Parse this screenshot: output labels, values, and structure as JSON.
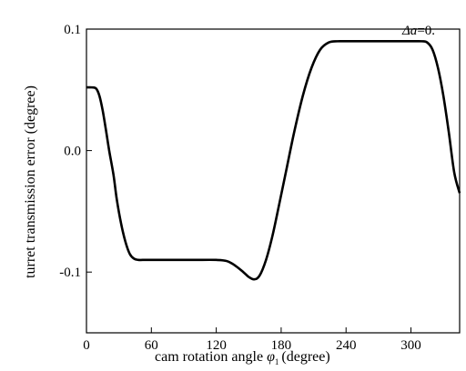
{
  "chart_data": {
    "type": "line",
    "title": "",
    "xlabel": "cam rotation angle",
    "xlabel_symbol": "φ",
    "xlabel_subscript": "1",
    "xlabel_unit": "(degree)",
    "ylabel": "turret transmission error (degree)",
    "xlim": [
      0,
      345
    ],
    "ylim": [
      -0.15,
      0.1
    ],
    "xticks": [
      0,
      60,
      120,
      180,
      240,
      300
    ],
    "xtick_labels": [
      "0",
      "60",
      "120",
      "180",
      "240",
      "300"
    ],
    "yticks": [
      0.1,
      0.0,
      -0.1
    ],
    "ytick_labels": [
      "0.1",
      "0.0",
      "-0.1"
    ],
    "annotation": {
      "var": "Δa",
      "text": "=0."
    },
    "grid": false,
    "line_color": "#000000",
    "series": [
      {
        "x": [
          0,
          5,
          9,
          12,
          15,
          18,
          21,
          25,
          28,
          32,
          36,
          40,
          44,
          48,
          52,
          60,
          80,
          100,
          120,
          130,
          138,
          145,
          150,
          155,
          160,
          166,
          172,
          178,
          185,
          192,
          200,
          208,
          216,
          224,
          232,
          240,
          260,
          280,
          300,
          310,
          315,
          320,
          325,
          330,
          335,
          340,
          345
        ],
        "y": [
          0.052,
          0.052,
          0.051,
          0.045,
          0.033,
          0.017,
          0.0,
          -0.02,
          -0.04,
          -0.06,
          -0.075,
          -0.085,
          -0.089,
          -0.09,
          -0.09,
          -0.09,
          -0.09,
          -0.09,
          -0.09,
          -0.091,
          -0.095,
          -0.1,
          -0.104,
          -0.106,
          -0.103,
          -0.09,
          -0.07,
          -0.045,
          -0.015,
          0.015,
          0.045,
          0.068,
          0.083,
          0.089,
          0.09,
          0.09,
          0.09,
          0.09,
          0.09,
          0.09,
          0.089,
          0.083,
          0.068,
          0.045,
          0.015,
          -0.018,
          -0.035
        ]
      }
    ]
  }
}
